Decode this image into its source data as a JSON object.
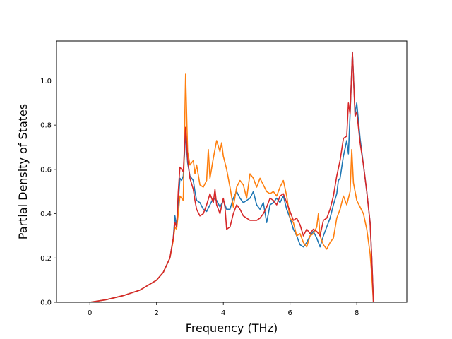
{
  "chart_data": {
    "type": "line",
    "title": "",
    "xlabel": "Frequency (THz)",
    "ylabel": "Partial Density of States",
    "xlim": [
      -1.0,
      9.5
    ],
    "ylim": [
      0.0,
      1.18
    ],
    "xticks": [
      0,
      2,
      4,
      6,
      8
    ],
    "xtick_labels": [
      "0",
      "2",
      "4",
      "6",
      "8"
    ],
    "yticks": [
      0.0,
      0.2,
      0.4,
      0.6,
      0.8,
      1.0
    ],
    "ytick_labels": [
      "0.0",
      "0.2",
      "0.4",
      "0.6",
      "0.8",
      "1.0"
    ],
    "grid": false,
    "legend": "none",
    "series": [
      {
        "color": "#1f77b4",
        "points": [
          [
            -0.85,
            0.0
          ],
          [
            0.0,
            0.0
          ],
          [
            0.5,
            0.012
          ],
          [
            1.0,
            0.03
          ],
          [
            1.5,
            0.055
          ],
          [
            2.0,
            0.1
          ],
          [
            2.2,
            0.135
          ],
          [
            2.4,
            0.2
          ],
          [
            2.5,
            0.29
          ],
          [
            2.55,
            0.39
          ],
          [
            2.6,
            0.34
          ],
          [
            2.65,
            0.45
          ],
          [
            2.7,
            0.56
          ],
          [
            2.75,
            0.55
          ],
          [
            2.8,
            0.57
          ],
          [
            2.87,
            0.76
          ],
          [
            2.93,
            0.63
          ],
          [
            3.0,
            0.57
          ],
          [
            3.1,
            0.55
          ],
          [
            3.15,
            0.5
          ],
          [
            3.2,
            0.46
          ],
          [
            3.3,
            0.45
          ],
          [
            3.4,
            0.42
          ],
          [
            3.5,
            0.41
          ],
          [
            3.6,
            0.44
          ],
          [
            3.7,
            0.47
          ],
          [
            3.8,
            0.46
          ],
          [
            3.9,
            0.43
          ],
          [
            4.0,
            0.46
          ],
          [
            4.1,
            0.42
          ],
          [
            4.2,
            0.42
          ],
          [
            4.3,
            0.47
          ],
          [
            4.4,
            0.5
          ],
          [
            4.5,
            0.47
          ],
          [
            4.6,
            0.45
          ],
          [
            4.7,
            0.46
          ],
          [
            4.8,
            0.47
          ],
          [
            4.9,
            0.5
          ],
          [
            5.0,
            0.44
          ],
          [
            5.1,
            0.42
          ],
          [
            5.2,
            0.45
          ],
          [
            5.3,
            0.36
          ],
          [
            5.4,
            0.44
          ],
          [
            5.5,
            0.45
          ],
          [
            5.6,
            0.47
          ],
          [
            5.7,
            0.45
          ],
          [
            5.8,
            0.48
          ],
          [
            5.9,
            0.42
          ],
          [
            6.0,
            0.38
          ],
          [
            6.1,
            0.33
          ],
          [
            6.2,
            0.3
          ],
          [
            6.3,
            0.26
          ],
          [
            6.4,
            0.25
          ],
          [
            6.5,
            0.27
          ],
          [
            6.6,
            0.3
          ],
          [
            6.7,
            0.32
          ],
          [
            6.8,
            0.29
          ],
          [
            6.9,
            0.25
          ],
          [
            7.0,
            0.3
          ],
          [
            7.1,
            0.34
          ],
          [
            7.2,
            0.38
          ],
          [
            7.3,
            0.44
          ],
          [
            7.4,
            0.49
          ],
          [
            7.45,
            0.55
          ],
          [
            7.5,
            0.56
          ],
          [
            7.6,
            0.66
          ],
          [
            7.7,
            0.73
          ],
          [
            7.75,
            0.67
          ],
          [
            7.8,
            0.85
          ],
          [
            7.87,
            1.13
          ],
          [
            7.95,
            0.85
          ],
          [
            8.0,
            0.9
          ],
          [
            8.1,
            0.74
          ],
          [
            8.2,
            0.62
          ],
          [
            8.3,
            0.5
          ],
          [
            8.4,
            0.36
          ],
          [
            8.45,
            0.2
          ],
          [
            8.5,
            0.0
          ],
          [
            9.3,
            0.0
          ]
        ]
      },
      {
        "color": "#ff7f0e",
        "points": [
          [
            -0.85,
            0.0
          ],
          [
            0.0,
            0.0
          ],
          [
            0.5,
            0.012
          ],
          [
            1.0,
            0.03
          ],
          [
            1.5,
            0.055
          ],
          [
            2.0,
            0.1
          ],
          [
            2.2,
            0.135
          ],
          [
            2.4,
            0.2
          ],
          [
            2.5,
            0.28
          ],
          [
            2.55,
            0.34
          ],
          [
            2.6,
            0.33
          ],
          [
            2.65,
            0.4
          ],
          [
            2.7,
            0.48
          ],
          [
            2.8,
            0.46
          ],
          [
            2.87,
            1.03
          ],
          [
            2.93,
            0.68
          ],
          [
            3.0,
            0.62
          ],
          [
            3.1,
            0.64
          ],
          [
            3.15,
            0.58
          ],
          [
            3.2,
            0.62
          ],
          [
            3.3,
            0.53
          ],
          [
            3.4,
            0.52
          ],
          [
            3.5,
            0.55
          ],
          [
            3.55,
            0.69
          ],
          [
            3.6,
            0.56
          ],
          [
            3.7,
            0.65
          ],
          [
            3.8,
            0.73
          ],
          [
            3.9,
            0.68
          ],
          [
            3.95,
            0.72
          ],
          [
            4.0,
            0.66
          ],
          [
            4.1,
            0.6
          ],
          [
            4.2,
            0.52
          ],
          [
            4.3,
            0.43
          ],
          [
            4.4,
            0.52
          ],
          [
            4.5,
            0.55
          ],
          [
            4.6,
            0.53
          ],
          [
            4.7,
            0.47
          ],
          [
            4.8,
            0.58
          ],
          [
            4.9,
            0.56
          ],
          [
            5.0,
            0.52
          ],
          [
            5.1,
            0.56
          ],
          [
            5.2,
            0.53
          ],
          [
            5.3,
            0.5
          ],
          [
            5.4,
            0.49
          ],
          [
            5.5,
            0.5
          ],
          [
            5.6,
            0.48
          ],
          [
            5.7,
            0.52
          ],
          [
            5.8,
            0.55
          ],
          [
            5.9,
            0.48
          ],
          [
            6.0,
            0.38
          ],
          [
            6.1,
            0.36
          ],
          [
            6.2,
            0.3
          ],
          [
            6.3,
            0.31
          ],
          [
            6.4,
            0.27
          ],
          [
            6.5,
            0.25
          ],
          [
            6.6,
            0.3
          ],
          [
            6.7,
            0.31
          ],
          [
            6.8,
            0.34
          ],
          [
            6.85,
            0.4
          ],
          [
            6.9,
            0.3
          ],
          [
            7.0,
            0.26
          ],
          [
            7.1,
            0.24
          ],
          [
            7.2,
            0.27
          ],
          [
            7.3,
            0.29
          ],
          [
            7.4,
            0.38
          ],
          [
            7.5,
            0.42
          ],
          [
            7.6,
            0.48
          ],
          [
            7.7,
            0.44
          ],
          [
            7.8,
            0.5
          ],
          [
            7.85,
            0.69
          ],
          [
            7.9,
            0.54
          ],
          [
            8.0,
            0.46
          ],
          [
            8.1,
            0.43
          ],
          [
            8.2,
            0.4
          ],
          [
            8.3,
            0.33
          ],
          [
            8.4,
            0.22
          ],
          [
            8.45,
            0.12
          ],
          [
            8.5,
            0.0
          ],
          [
            9.3,
            0.0
          ]
        ]
      },
      {
        "color": "#d62728",
        "points": [
          [
            -0.85,
            0.0
          ],
          [
            0.0,
            0.0
          ],
          [
            0.5,
            0.012
          ],
          [
            1.0,
            0.03
          ],
          [
            1.5,
            0.055
          ],
          [
            2.0,
            0.1
          ],
          [
            2.2,
            0.135
          ],
          [
            2.4,
            0.2
          ],
          [
            2.5,
            0.29
          ],
          [
            2.55,
            0.36
          ],
          [
            2.6,
            0.34
          ],
          [
            2.65,
            0.5
          ],
          [
            2.7,
            0.61
          ],
          [
            2.8,
            0.59
          ],
          [
            2.87,
            0.79
          ],
          [
            2.93,
            0.65
          ],
          [
            3.0,
            0.56
          ],
          [
            3.1,
            0.51
          ],
          [
            3.15,
            0.46
          ],
          [
            3.2,
            0.42
          ],
          [
            3.3,
            0.39
          ],
          [
            3.4,
            0.4
          ],
          [
            3.5,
            0.44
          ],
          [
            3.6,
            0.49
          ],
          [
            3.7,
            0.45
          ],
          [
            3.75,
            0.51
          ],
          [
            3.8,
            0.44
          ],
          [
            3.9,
            0.4
          ],
          [
            4.0,
            0.47
          ],
          [
            4.05,
            0.43
          ],
          [
            4.1,
            0.33
          ],
          [
            4.2,
            0.34
          ],
          [
            4.3,
            0.4
          ],
          [
            4.4,
            0.44
          ],
          [
            4.5,
            0.42
          ],
          [
            4.6,
            0.39
          ],
          [
            4.7,
            0.38
          ],
          [
            4.8,
            0.37
          ],
          [
            4.9,
            0.37
          ],
          [
            5.0,
            0.37
          ],
          [
            5.1,
            0.38
          ],
          [
            5.2,
            0.4
          ],
          [
            5.3,
            0.43
          ],
          [
            5.4,
            0.47
          ],
          [
            5.5,
            0.46
          ],
          [
            5.6,
            0.44
          ],
          [
            5.7,
            0.48
          ],
          [
            5.8,
            0.49
          ],
          [
            5.9,
            0.45
          ],
          [
            6.0,
            0.41
          ],
          [
            6.1,
            0.37
          ],
          [
            6.2,
            0.38
          ],
          [
            6.3,
            0.35
          ],
          [
            6.4,
            0.3
          ],
          [
            6.5,
            0.33
          ],
          [
            6.6,
            0.31
          ],
          [
            6.7,
            0.33
          ],
          [
            6.8,
            0.32
          ],
          [
            6.9,
            0.3
          ],
          [
            7.0,
            0.37
          ],
          [
            7.1,
            0.38
          ],
          [
            7.2,
            0.42
          ],
          [
            7.3,
            0.48
          ],
          [
            7.4,
            0.57
          ],
          [
            7.5,
            0.64
          ],
          [
            7.6,
            0.74
          ],
          [
            7.7,
            0.75
          ],
          [
            7.75,
            0.9
          ],
          [
            7.8,
            0.85
          ],
          [
            7.87,
            1.13
          ],
          [
            7.95,
            0.84
          ],
          [
            8.0,
            0.86
          ],
          [
            8.1,
            0.72
          ],
          [
            8.2,
            0.62
          ],
          [
            8.3,
            0.5
          ],
          [
            8.4,
            0.36
          ],
          [
            8.45,
            0.2
          ],
          [
            8.5,
            0.0
          ],
          [
            9.3,
            0.0
          ]
        ]
      }
    ]
  }
}
